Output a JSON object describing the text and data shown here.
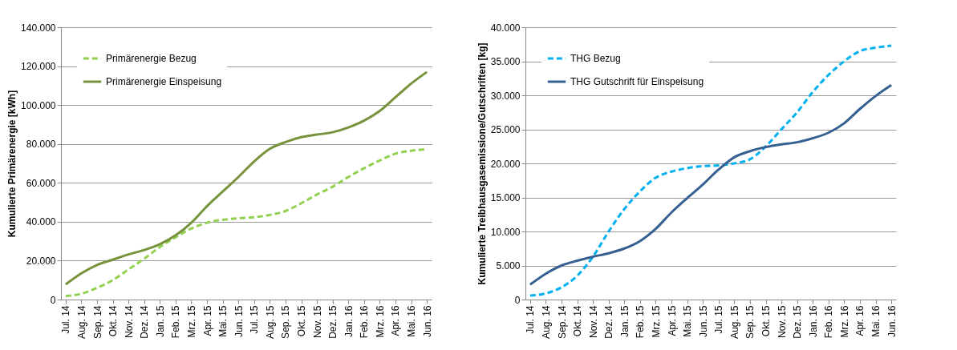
{
  "chart_data": [
    {
      "type": "line",
      "ylabel": "Kumulierte Primärenergie [kWh]",
      "categories": [
        "Jul. 14",
        "Aug. 14",
        "Sep. 14",
        "Okt. 14",
        "Nov. 14",
        "Dez. 14",
        "Jan. 15",
        "Feb. 15",
        "Mrz. 15",
        "Apr. 15",
        "Mai. 15",
        "Jun. 15",
        "Jul. 15",
        "Aug. 15",
        "Sep. 15",
        "Okt. 15",
        "Nov. 15",
        "Dez. 15",
        "Jan. 16",
        "Feb. 16",
        "Mrz. 16",
        "Apr. 16",
        "Mai. 16",
        "Jun. 16"
      ],
      "series": [
        {
          "name": "Primärenergie Bezug",
          "color": "#92d050",
          "line_style": "dashed",
          "values": [
            1800,
            3000,
            6000,
            10000,
            15500,
            21000,
            27000,
            32000,
            36500,
            39500,
            41000,
            41800,
            42300,
            43500,
            45500,
            49500,
            54000,
            58000,
            63000,
            67500,
            71500,
            75000,
            76500,
            77300
          ]
        },
        {
          "name": "Primärenergie Einspeisung",
          "color": "#77933c",
          "line_style": "solid",
          "values": [
            7800,
            13500,
            17800,
            20500,
            23200,
            25500,
            28500,
            33000,
            39500,
            48000,
            55500,
            63000,
            71000,
            77500,
            81000,
            83500,
            84800,
            86000,
            88500,
            92000,
            97000,
            104000,
            111000,
            117000
          ]
        }
      ],
      "ylim": [
        0,
        140000
      ],
      "yticks": [
        {
          "value": 0,
          "label": "0"
        },
        {
          "value": 20000,
          "label": "20.000"
        },
        {
          "value": 40000,
          "label": "40.000"
        },
        {
          "value": 60000,
          "label": "60.000"
        },
        {
          "value": 80000,
          "label": "80.000"
        },
        {
          "value": 100000,
          "label": "100.000"
        },
        {
          "value": 120000,
          "label": "120.000"
        },
        {
          "value": 140000,
          "label": "140.000"
        }
      ],
      "grid": "y",
      "legend": "top left"
    },
    {
      "type": "line",
      "ylabel": "Kumulierte Treibhausgasemissione/Gutschriften [kg]",
      "categories": [
        "Jul. 14",
        "Aug. 14",
        "Sep. 14",
        "Okt. 14",
        "Nov. 14",
        "Dez. 14",
        "Jan. 15",
        "Feb. 15",
        "Mrz. 15",
        "Apr. 15",
        "Mai. 15",
        "Jun. 15",
        "Jul. 15",
        "Aug. 15",
        "Sep. 15",
        "Okt. 15",
        "Nov. 15",
        "Dez. 15",
        "Jan. 16",
        "Feb. 16",
        "Mrz. 16",
        "Apr. 16",
        "Mai. 16",
        "Jun. 16"
      ],
      "series": [
        {
          "name": "THG Bezug",
          "color": "#00b0f0",
          "line_style": "dashed",
          "values": [
            600,
            900,
            1800,
            3500,
            6300,
            10000,
            13300,
            15900,
            17900,
            18800,
            19300,
            19600,
            19700,
            20000,
            20600,
            22500,
            25000,
            27500,
            30500,
            33000,
            35000,
            36500,
            37000,
            37300
          ]
        },
        {
          "name": "THG Gutschrift für Einspeisung",
          "color": "#376092",
          "line_style": "solid",
          "values": [
            2200,
            3800,
            5000,
            5700,
            6300,
            6800,
            7500,
            8600,
            10400,
            12800,
            14900,
            16900,
            19100,
            20900,
            21800,
            22400,
            22800,
            23100,
            23700,
            24500,
            25900,
            28000,
            29900,
            31500
          ]
        }
      ],
      "ylim": [
        0,
        40000
      ],
      "yticks": [
        {
          "value": 0,
          "label": "0"
        },
        {
          "value": 5000,
          "label": "5.000"
        },
        {
          "value": 10000,
          "label": "10.000"
        },
        {
          "value": 15000,
          "label": "15.000"
        },
        {
          "value": 20000,
          "label": "20.000"
        },
        {
          "value": 25000,
          "label": "25.000"
        },
        {
          "value": 30000,
          "label": "30.000"
        },
        {
          "value": 35000,
          "label": "35.000"
        },
        {
          "value": 40000,
          "label": "40.000"
        }
      ],
      "grid": "y",
      "legend": "top left"
    }
  ]
}
